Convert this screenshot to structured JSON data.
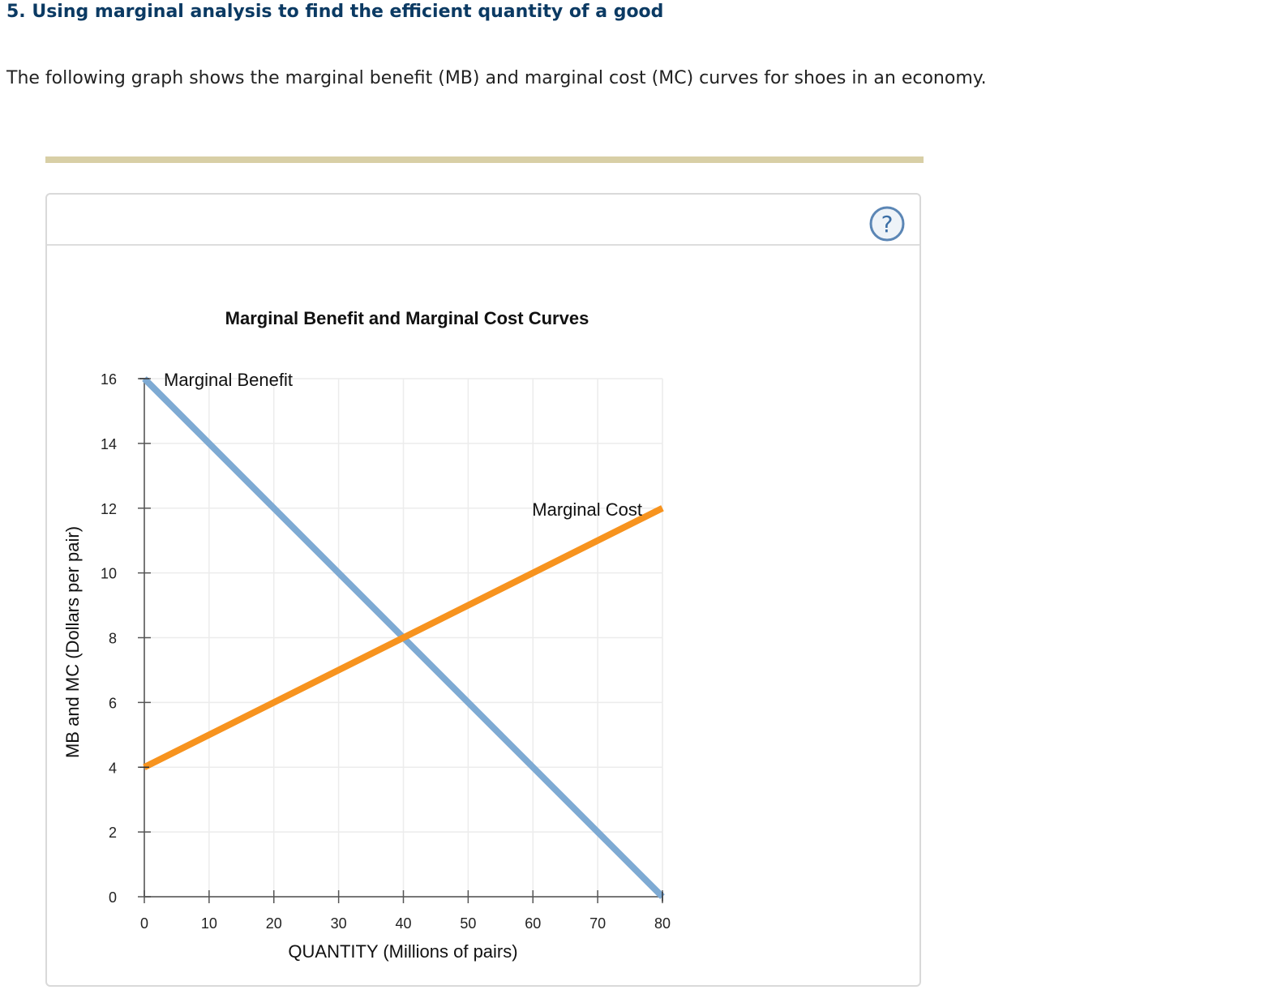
{
  "question": {
    "title": "5. Using marginal analysis to find the efficient quantity of a good",
    "text": "The following graph shows the marginal benefit (MB) and marginal cost (MC) curves for shoes in an economy."
  },
  "help_icon": "help-question-icon",
  "colors": {
    "title": "#0b3a63",
    "divider": "#d8cfa6",
    "mb_line": "#7eaad3",
    "mc_line": "#f7931e",
    "grid": "#ececec",
    "axis": "#777777"
  },
  "chart_data": {
    "type": "line",
    "title": "Marginal Benefit and Marginal Cost Curves",
    "xlabel": "QUANTITY (Millions of pairs)",
    "ylabel": "MB and MC (Dollars per pair)",
    "xlim": [
      0,
      80
    ],
    "ylim": [
      0,
      16
    ],
    "xticks": [
      0,
      10,
      20,
      30,
      40,
      50,
      60,
      70,
      80
    ],
    "yticks": [
      0,
      2,
      4,
      6,
      8,
      10,
      12,
      14,
      16
    ],
    "grid": true,
    "series": [
      {
        "name": "Marginal Benefit",
        "color": "#7eaad3",
        "x": [
          0,
          80
        ],
        "y": [
          16,
          0
        ]
      },
      {
        "name": "Marginal Cost",
        "color": "#f7931e",
        "x": [
          0,
          80
        ],
        "y": [
          4,
          12
        ]
      }
    ]
  }
}
